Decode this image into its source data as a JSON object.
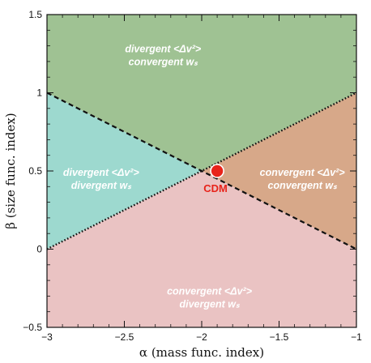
{
  "chart_data": {
    "type": "area",
    "xlabel": "α (mass func. index)",
    "ylabel": "β (size func. index)",
    "xlim": [
      -3,
      -1
    ],
    "ylim": [
      -0.5,
      1.5
    ],
    "xticks": [
      -3,
      -2.5,
      -2,
      -1.5,
      -1
    ],
    "yticks": [
      -0.5,
      0,
      0.5,
      1,
      1.5
    ],
    "xtick_labels": [
      "−3",
      "−2.5",
      "−2",
      "−1.5",
      "−1"
    ],
    "ytick_labels": [
      "−0.5",
      "0",
      "0.5",
      "1",
      "1.5"
    ],
    "grid": false,
    "lines": [
      {
        "style": "dashed",
        "points": [
          [
            -3,
            1
          ],
          [
            -1,
            0
          ]
        ]
      },
      {
        "style": "dotted",
        "points": [
          [
            -3,
            0
          ],
          [
            -1,
            1
          ]
        ]
      }
    ],
    "regions": [
      {
        "color": "#9fc293",
        "line1": "divergent  <Δv²>",
        "line2": "convergent  wₛ",
        "label_x": -2.25,
        "label_y": 1.26
      },
      {
        "color": "#9dd9cf",
        "line1": "divergent <Δv²>",
        "line2": "divergent  wₛ",
        "label_x": -2.65,
        "label_y": 0.47
      },
      {
        "color": "#d7a889",
        "line1": "convergent <Δv²>",
        "line2": "convergent  wₛ",
        "label_x": -1.35,
        "label_y": 0.47
      },
      {
        "color": "#eac3c3",
        "line1": "convergent <Δv²>",
        "line2": "divergent     wₛ",
        "label_x": -1.95,
        "label_y": -0.29
      }
    ],
    "point": {
      "label": "CDM",
      "x": -1.9,
      "y": 0.5,
      "color": "#e8231a"
    }
  }
}
